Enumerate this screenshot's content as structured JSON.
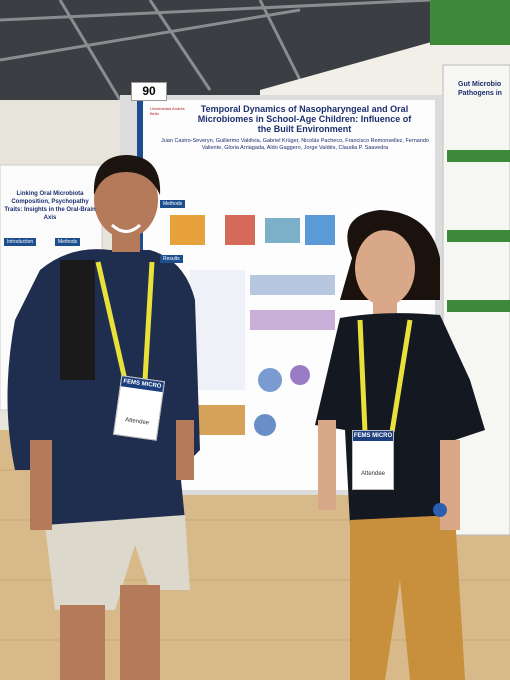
{
  "board_number": "90",
  "main_poster": {
    "institution": "Universidad Andrés Bello",
    "title": "Temporal Dynamics of Nasopharyngeal and Oral Microbiomes in School-Age Children: Influence of the Built Environment",
    "authors": "Juan Castro-Severyn, Guillermo Valdivia, Gabriel Krüger, Nicolás Pacheco, Francisco Remonsellez, Fernando Valiente, Gloria Arriagada, Aldo Gaggero, Jorge Valdés, Claudia P. Saavedra",
    "sections": [
      "Methods",
      "Results"
    ]
  },
  "left_poster": {
    "title": "Linking Oral Microbiota Composition, Psychopathy Traits: Insights in the Oral-Brain Axis",
    "sections": [
      "Introduction",
      "Methods"
    ]
  },
  "right_poster": {
    "title": "Gut Microbio Pathogens in"
  },
  "badges": [
    {
      "org": "FEMS MICRO",
      "role": "Attendee"
    },
    {
      "org": "FEMS MICRO",
      "role": "Attendee"
    }
  ]
}
